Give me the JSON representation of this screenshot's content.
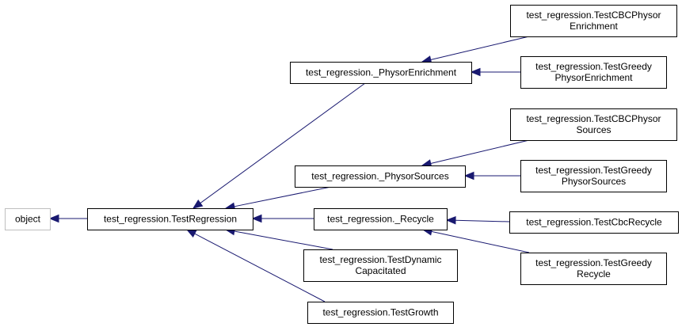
{
  "diagram": {
    "nodes": [
      {
        "id": "object",
        "lines": [
          "object"
        ],
        "style": "root"
      },
      {
        "id": "test_regression",
        "lines": [
          "test_regression.TestRegression"
        ]
      },
      {
        "id": "physor_enrichment",
        "lines": [
          "test_regression._PhysorEnrichment"
        ]
      },
      {
        "id": "physor_sources",
        "lines": [
          "test_regression._PhysorSources"
        ]
      },
      {
        "id": "recycle",
        "lines": [
          "test_regression._Recycle"
        ]
      },
      {
        "id": "test_dynamic_capacitated",
        "lines": [
          "test_regression.TestDynamic",
          "Capacitated"
        ]
      },
      {
        "id": "test_growth",
        "lines": [
          "test_regression.TestGrowth"
        ]
      },
      {
        "id": "test_cbc_physor_enrichment",
        "lines": [
          "test_regression.TestCBCPhysor",
          "Enrichment"
        ]
      },
      {
        "id": "test_greedy_physor_enrichment",
        "lines": [
          "test_regression.TestGreedy",
          "PhysorEnrichment"
        ]
      },
      {
        "id": "test_cbc_physor_sources",
        "lines": [
          "test_regression.TestCBCPhysor",
          "Sources"
        ]
      },
      {
        "id": "test_greedy_physor_sources",
        "lines": [
          "test_regression.TestGreedy",
          "PhysorSources"
        ]
      },
      {
        "id": "test_cbc_recycle",
        "lines": [
          "test_regression.TestCbcRecycle"
        ]
      },
      {
        "id": "test_greedy_recycle",
        "lines": [
          "test_regression.TestGreedy",
          "Recycle"
        ]
      }
    ],
    "edges": [
      {
        "from": "test_regression",
        "to": "object"
      },
      {
        "from": "physor_enrichment",
        "to": "test_regression"
      },
      {
        "from": "physor_sources",
        "to": "test_regression"
      },
      {
        "from": "recycle",
        "to": "test_regression"
      },
      {
        "from": "test_dynamic_capacitated",
        "to": "test_regression"
      },
      {
        "from": "test_growth",
        "to": "test_regression"
      },
      {
        "from": "test_cbc_physor_enrichment",
        "to": "physor_enrichment"
      },
      {
        "from": "test_greedy_physor_enrichment",
        "to": "physor_enrichment"
      },
      {
        "from": "test_cbc_physor_sources",
        "to": "physor_sources"
      },
      {
        "from": "test_greedy_physor_sources",
        "to": "physor_sources"
      },
      {
        "from": "test_cbc_recycle",
        "to": "recycle"
      },
      {
        "from": "test_greedy_recycle",
        "to": "recycle"
      }
    ],
    "colors": {
      "edge": "#191970",
      "box_border": "#000000",
      "root_border": "#bfbfbf"
    }
  }
}
